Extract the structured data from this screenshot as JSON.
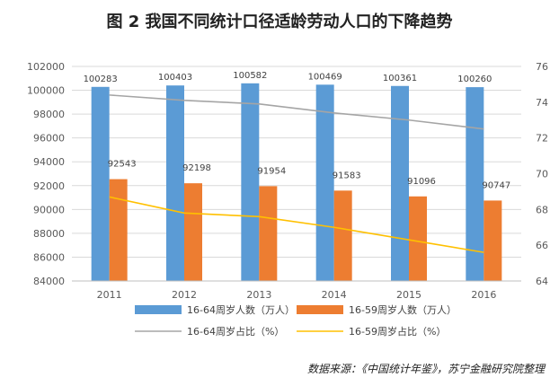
{
  "title": "图 2  我国不同统计口径适龄劳动人口的下降趋势",
  "source": "数据来源：《中国统计年鉴》，苏宁金融研究院整理",
  "colors": {
    "bar_16_64": "#5b9bd5",
    "bar_16_59": "#ed7d31",
    "line_16_64": "#a5a5a5",
    "line_16_59": "#ffc000",
    "grid": "#d9d9d9",
    "axis_text": "#595959"
  },
  "chart_data": {
    "type": "bar",
    "categories": [
      "2011",
      "2012",
      "2013",
      "2014",
      "2015",
      "2016"
    ],
    "ylim": [
      84000,
      102000
    ],
    "yticks": [
      84000,
      86000,
      88000,
      90000,
      92000,
      94000,
      96000,
      98000,
      100000,
      102000
    ],
    "y2lim": [
      64,
      76
    ],
    "y2ticks": [
      64,
      66,
      68,
      70,
      72,
      74,
      76
    ],
    "series": [
      {
        "name": "16-64周岁人数（万人）",
        "type": "bar",
        "axis": "left",
        "values": [
          100283,
          100403,
          100582,
          100469,
          100361,
          100260
        ],
        "labels": [
          "100283",
          "100403",
          "100582",
          "100469",
          "100361",
          "100260"
        ]
      },
      {
        "name": "16-59周岁人数（万人）",
        "type": "bar",
        "axis": "left",
        "values": [
          92543,
          92198,
          91954,
          91583,
          91096,
          90747
        ],
        "labels": [
          "92543",
          "92198",
          "91954",
          "91583",
          "91096",
          "90747"
        ]
      },
      {
        "name": "16-64周岁占比（%）",
        "type": "line",
        "axis": "right",
        "values": [
          74.4,
          74.1,
          73.9,
          73.4,
          73.0,
          72.5
        ]
      },
      {
        "name": "16-59周岁占比（%）",
        "type": "line",
        "axis": "right",
        "values": [
          68.7,
          67.8,
          67.6,
          67.0,
          66.3,
          65.6
        ]
      }
    ],
    "grid": true,
    "legend_position": "bottom"
  }
}
